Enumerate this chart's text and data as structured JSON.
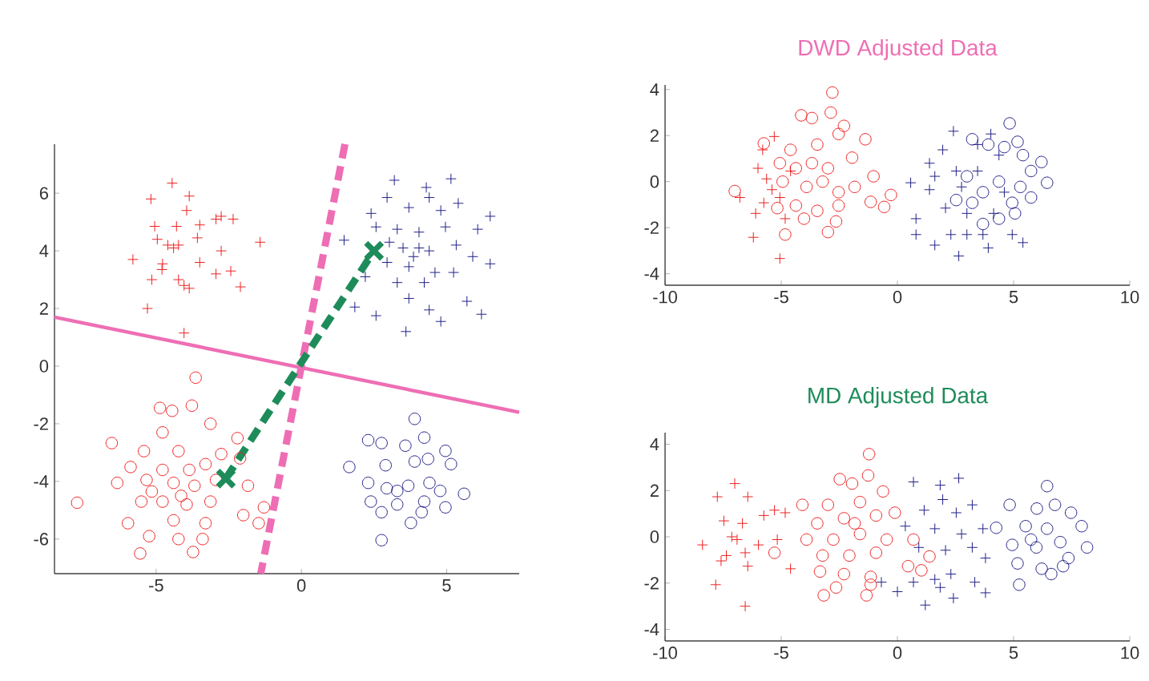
{
  "chart_data": [
    {
      "type": "scatter",
      "xlim": [
        -8.5,
        7.5
      ],
      "ylim": [
        -7.2,
        7.7
      ],
      "xticks": [
        -5,
        0,
        5
      ],
      "yticks": [
        -6,
        -4,
        -2,
        0,
        2,
        4,
        6
      ],
      "series": [
        {
          "color": "#ee2222",
          "marker": "cross",
          "x": [
            -4.45,
            -5.18,
            -3.86,
            -3.95,
            -5.05,
            -4.3,
            -3.5,
            -2.94,
            -2.76,
            -2.35,
            -4.96,
            -4.6,
            -4.4,
            -4.23,
            -3.58,
            -5.8,
            -4.78,
            -3.5,
            -2.76,
            -1.42,
            -4.8,
            -5.15,
            -4.23,
            -2.94,
            -2.43,
            -4.04,
            -3.86,
            -2.1,
            -5.3,
            -4.04
          ],
          "values": [
            6.35,
            5.8,
            5.9,
            5.4,
            4.85,
            4.85,
            4.9,
            5.1,
            5.2,
            5.1,
            4.4,
            4.2,
            4.1,
            4.2,
            4.45,
            3.7,
            3.55,
            3.6,
            4.0,
            4.3,
            3.35,
            3.0,
            3.0,
            3.2,
            3.3,
            2.8,
            2.7,
            2.75,
            2.0,
            1.15
          ]
        },
        {
          "color": "#22228a",
          "marker": "cross",
          "x": [
            3.2,
            5.15,
            4.3,
            2.95,
            4.4,
            5.4,
            2.4,
            3.7,
            4.8,
            6.5,
            1.47,
            2.57,
            3.3,
            4.05,
            4.96,
            6.07,
            3.5,
            4.05,
            4.4,
            5.33,
            5.9,
            6.5,
            2.95,
            3.7,
            4.6,
            5.24,
            2.2,
            3.3,
            4.23,
            1.84,
            2.57,
            3.7,
            4.4,
            4.8,
            3.6,
            5.7,
            6.2,
            3.86,
            3.03
          ],
          "values": [
            6.45,
            6.5,
            6.2,
            5.85,
            5.85,
            5.65,
            5.3,
            5.5,
            5.4,
            5.2,
            4.37,
            4.83,
            4.75,
            4.65,
            4.83,
            4.75,
            4.1,
            4.1,
            4.0,
            4.2,
            3.8,
            3.55,
            3.6,
            3.45,
            3.25,
            3.25,
            3.1,
            2.9,
            2.9,
            2.05,
            1.75,
            2.35,
            1.95,
            1.55,
            1.2,
            2.25,
            1.8,
            3.8,
            4.3
          ]
        },
        {
          "color": "#ee2222",
          "marker": "circle",
          "x": [
            -3.64,
            -4.87,
            -3.77,
            -4.45,
            -3.13,
            -6.53,
            -4.78,
            -2.2,
            -5.42,
            -4.23,
            -2.76,
            -5.88,
            -4.78,
            -3.86,
            -3.3,
            -2.11,
            -6.34,
            -5.33,
            -4.4,
            -3.68,
            -2.94,
            -1.84,
            -7.72,
            -5.51,
            -4.78,
            -3.95,
            -3.13,
            -2.0,
            -1.29,
            -5.97,
            -4.4,
            -3.3,
            -1.47,
            -5.24,
            -4.23,
            -3.4,
            -5.55,
            -3.73,
            -5.15,
            -4.14
          ],
          "values": [
            -0.4,
            -1.45,
            -1.37,
            -1.55,
            -2.0,
            -2.67,
            -2.3,
            -2.5,
            -2.95,
            -2.95,
            -3.05,
            -3.5,
            -3.6,
            -3.6,
            -3.4,
            -3.2,
            -4.05,
            -3.95,
            -4.05,
            -4.15,
            -3.95,
            -4.15,
            -4.74,
            -4.7,
            -4.7,
            -4.8,
            -4.7,
            -5.17,
            -4.9,
            -5.45,
            -5.35,
            -5.45,
            -5.45,
            -5.9,
            -6.0,
            -6.0,
            -6.5,
            -6.45,
            -4.35,
            -4.5
          ]
        },
        {
          "color": "#22228a",
          "marker": "circle",
          "x": [
            3.9,
            2.3,
            2.76,
            3.58,
            4.23,
            4.96,
            1.65,
            2.9,
            3.9,
            4.36,
            5.15,
            2.3,
            2.94,
            3.68,
            4.41,
            4.78,
            5.6,
            2.39,
            3.3,
            4.23,
            4.96,
            2.76,
            3.77,
            4.14,
            2.76,
            3.3
          ],
          "values": [
            -1.83,
            -2.57,
            -2.67,
            -2.76,
            -2.48,
            -2.94,
            -3.5,
            -3.44,
            -3.31,
            -3.22,
            -3.4,
            -4.05,
            -4.24,
            -4.15,
            -4.05,
            -4.33,
            -4.43,
            -4.7,
            -4.8,
            -4.7,
            -4.9,
            -5.07,
            -5.44,
            -5.07,
            -6.04,
            -4.33
          ]
        },
        {
          "type": "line",
          "color": "#ee6eb4",
          "line_style": "solid",
          "x": [
            -8.5,
            7.5
          ],
          "values": [
            1.7,
            -1.6
          ]
        },
        {
          "type": "line",
          "color": "#ee6eb4",
          "line_style": "dashed",
          "x": [
            1.5,
            -1.4
          ],
          "values": [
            7.7,
            -7.2
          ]
        },
        {
          "type": "line",
          "color": "#1e8c5a",
          "line_style": "dashed",
          "x": [
            -2.6,
            2.5
          ],
          "values": [
            -3.9,
            4.0
          ]
        },
        {
          "color": "#1e8c5a",
          "marker": "x",
          "x": [
            -2.6,
            2.5
          ],
          "values": [
            -3.9,
            4.0
          ]
        }
      ]
    },
    {
      "type": "scatter",
      "title": "DWD Adjusted Data",
      "xlim": [
        -10,
        10
      ],
      "ylim": [
        -4.5,
        4.2
      ],
      "xticks": [
        -10,
        -5,
        0,
        5,
        10
      ],
      "yticks": [
        -4,
        -2,
        0,
        2,
        4
      ],
      "series": [
        {
          "color": "#ee2222",
          "marker": "cross",
          "x": [
            -5.8,
            -5.3,
            -6.0,
            -5.63,
            -5.4,
            -5.75,
            -6.1,
            -6.2,
            -5.06,
            -4.83,
            -6.78,
            -5.06,
            -4.6
          ],
          "values": [
            1.38,
            1.96,
            0.58,
            0.12,
            -0.35,
            -0.92,
            -1.38,
            -2.42,
            -3.34,
            -1.61,
            -0.69,
            -0.69,
            0.46
          ]
        },
        {
          "color": "#ee2222",
          "marker": "circle",
          "x": [
            -2.8,
            -2.87,
            -4.14,
            -3.68,
            -2.3,
            -5.75,
            -1.38,
            -4.6,
            -3.45,
            -2.53,
            -1.95,
            -5.06,
            -4.37,
            -3.68,
            -2.99,
            -1.03,
            -7.0,
            -4.94,
            -3.91,
            -3.22,
            -2.53,
            -1.84,
            -0.28,
            -0.57,
            -1.15,
            -4.37,
            -3.45,
            -2.53,
            -4.02,
            -2.64,
            -4.83,
            -2.99,
            -5.17
          ],
          "values": [
            3.87,
            3.0,
            2.88,
            2.76,
            2.42,
            1.66,
            1.84,
            1.38,
            1.61,
            2.07,
            1.04,
            0.8,
            0.58,
            0.8,
            0.58,
            0.23,
            -0.41,
            0.0,
            -0.23,
            0.0,
            -0.46,
            -0.23,
            -0.58,
            -1.1,
            -0.88,
            -1.04,
            -1.27,
            -1.04,
            -1.61,
            -1.73,
            -2.3,
            -2.19,
            -1.15
          ]
        },
        {
          "color": "#22228a",
          "marker": "cross",
          "x": [
            2.41,
            1.95,
            0.57,
            1.38,
            1.38,
            0.8,
            0.8,
            1.61,
            2.3,
            2.64,
            2.99,
            3.91,
            3.68,
            4.94,
            5.4,
            3.45,
            4.02,
            4.37,
            2.07,
            2.99,
            4.14,
            1.61,
            2.76,
            3.45,
            4.6,
            2.53
          ],
          "values": [
            2.19,
            1.38,
            -0.05,
            -0.35,
            0.8,
            -1.61,
            -2.3,
            -2.76,
            -2.3,
            -3.23,
            -2.3,
            -2.88,
            -2.3,
            -2.3,
            -2.65,
            1.61,
            2.07,
            1.15,
            -1.15,
            -1.38,
            -1.38,
            0.23,
            -0.23,
            0.46,
            -0.46,
            0.46
          ]
        },
        {
          "color": "#22228a",
          "marker": "circle",
          "x": [
            4.83,
            3.22,
            5.17,
            3.91,
            4.6,
            5.4,
            6.2,
            5.75,
            6.44,
            5.29,
            4.37,
            3.68,
            5.75,
            4.94,
            3.68,
            4.37,
            5.06,
            3.22,
            2.99,
            2.53
          ],
          "values": [
            2.53,
            1.84,
            1.73,
            1.61,
            1.5,
            1.15,
            0.85,
            0.46,
            -0.05,
            -0.23,
            0,
            -0.46,
            -0.69,
            -0.92,
            -1.84,
            -1.61,
            -1.38,
            -0.92,
            0.23,
            -0.8
          ]
        }
      ]
    },
    {
      "type": "scatter",
      "title": "MD Adjusted Data",
      "xlim": [
        -10,
        10
      ],
      "ylim": [
        -4.5,
        4.5
      ],
      "xticks": [
        -10,
        -5,
        0,
        5,
        10
      ],
      "yticks": [
        -4,
        -2,
        0,
        2,
        4
      ],
      "series": [
        {
          "color": "#ee2222",
          "marker": "cross",
          "x": [
            -7.0,
            -7.75,
            -6.44,
            -7.47,
            -6.67,
            -5.75,
            -5.29,
            -4.83,
            -8.39,
            -7.13,
            -6.55,
            -7.59,
            -6.44,
            -7.82,
            -6.55,
            -4.6,
            -5.98,
            -5.17,
            -6.9,
            -7.36
          ],
          "values": [
            2.3,
            1.73,
            1.73,
            0.69,
            0.58,
            0.92,
            1.15,
            1.04,
            -0.35,
            0,
            -0.69,
            -1.04,
            -1.27,
            -2.07,
            -3.0,
            -1.38,
            -0.35,
            -0.12,
            -0.12,
            -0.81
          ]
        },
        {
          "color": "#ee2222",
          "marker": "circle",
          "x": [
            -1.22,
            -1.26,
            -2.48,
            -1.95,
            -0.62,
            -4.09,
            -2.99,
            -1.61,
            -3.45,
            -2.3,
            -0.92,
            -0.11,
            -3.91,
            -2.76,
            -1.61,
            -0.46,
            0.69,
            -5.29,
            -3.22,
            -2.07,
            -0.92,
            1.38,
            0.46,
            1.03,
            -3.33,
            -2.3,
            -1.15,
            -2.64,
            -1.15,
            -3.17,
            -1.33,
            -1.84
          ],
          "values": [
            3.57,
            2.65,
            2.49,
            2.3,
            1.96,
            1.38,
            1.38,
            1.5,
            0.58,
            0.8,
            0.92,
            1.04,
            -0.12,
            -0.12,
            0.12,
            -0.12,
            -0.12,
            -0.69,
            -0.81,
            -0.81,
            -0.69,
            -0.85,
            -1.27,
            -1.45,
            -1.5,
            -1.61,
            -1.73,
            -2.19,
            -2.07,
            -2.53,
            -2.53,
            0.58
          ]
        },
        {
          "color": "#22228a",
          "marker": "cross",
          "x": [
            0.69,
            1.84,
            2.64,
            1.95,
            1.15,
            2.53,
            3.22,
            0.34,
            1.61,
            2.76,
            3.68,
            0.92,
            2.07,
            3.22,
            3.79,
            0.69,
            1.61,
            2.3,
            3.33,
            1.84,
            2.41,
            3.79,
            1.2,
            0,
            -0.69
          ],
          "values": [
            2.37,
            2.23,
            2.53,
            1.61,
            1.15,
            1.04,
            1.38,
            0.46,
            0.35,
            0.12,
            0.35,
            -0.46,
            -0.58,
            -0.46,
            -0.92,
            -1.96,
            -1.84,
            -1.61,
            -1.96,
            -2.19,
            -2.65,
            -2.42,
            -2.95,
            -2.37,
            -1.96
          ]
        },
        {
          "color": "#22228a",
          "marker": "circle",
          "x": [
            6.44,
            4.83,
            6.0,
            6.78,
            7.47,
            4.25,
            5.52,
            6.44,
            7.93,
            4.94,
            5.98,
            7.01,
            8.16,
            5.17,
            6.21,
            7.36,
            6.62,
            5.24,
            7.13,
            5.75
          ],
          "values": [
            2.19,
            1.38,
            1.22,
            1.38,
            1.04,
            0.39,
            0.46,
            0.35,
            0.46,
            -0.35,
            -0.46,
            -0.23,
            -0.46,
            -1.15,
            -1.38,
            -0.92,
            -1.61,
            -2.07,
            -1.27,
            -0.12
          ]
        }
      ]
    }
  ]
}
